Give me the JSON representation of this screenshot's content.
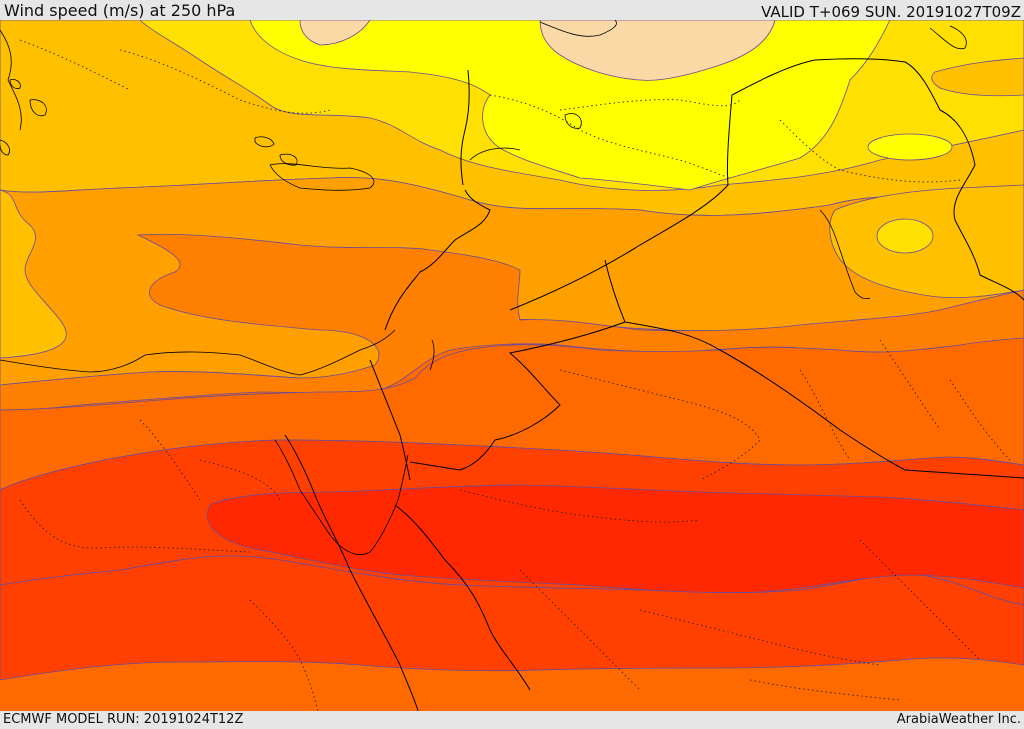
{
  "header": {
    "title": "Wind speed (m/s) at 250 hPa",
    "valid": "VALID T+069 SUN. 20191027T09Z"
  },
  "footer": {
    "model_run": "ECMWF MODEL RUN: 20191024T12Z",
    "credit": "ArabiaWeather Inc."
  },
  "colors": {
    "band_lightest": "#fbd9a6",
    "band_yellow": "#ffff00",
    "band_light_gold": "#ffe000",
    "band_gold": "#ffc000",
    "band_orange_light": "#ffa000",
    "band_orange": "#ff8000",
    "band_dark_orange": "#ff6a00",
    "band_red_orange": "#ff4000",
    "band_red": "#ff2800",
    "contour_line": "#6a4b9a",
    "border_line": "#000000"
  }
}
